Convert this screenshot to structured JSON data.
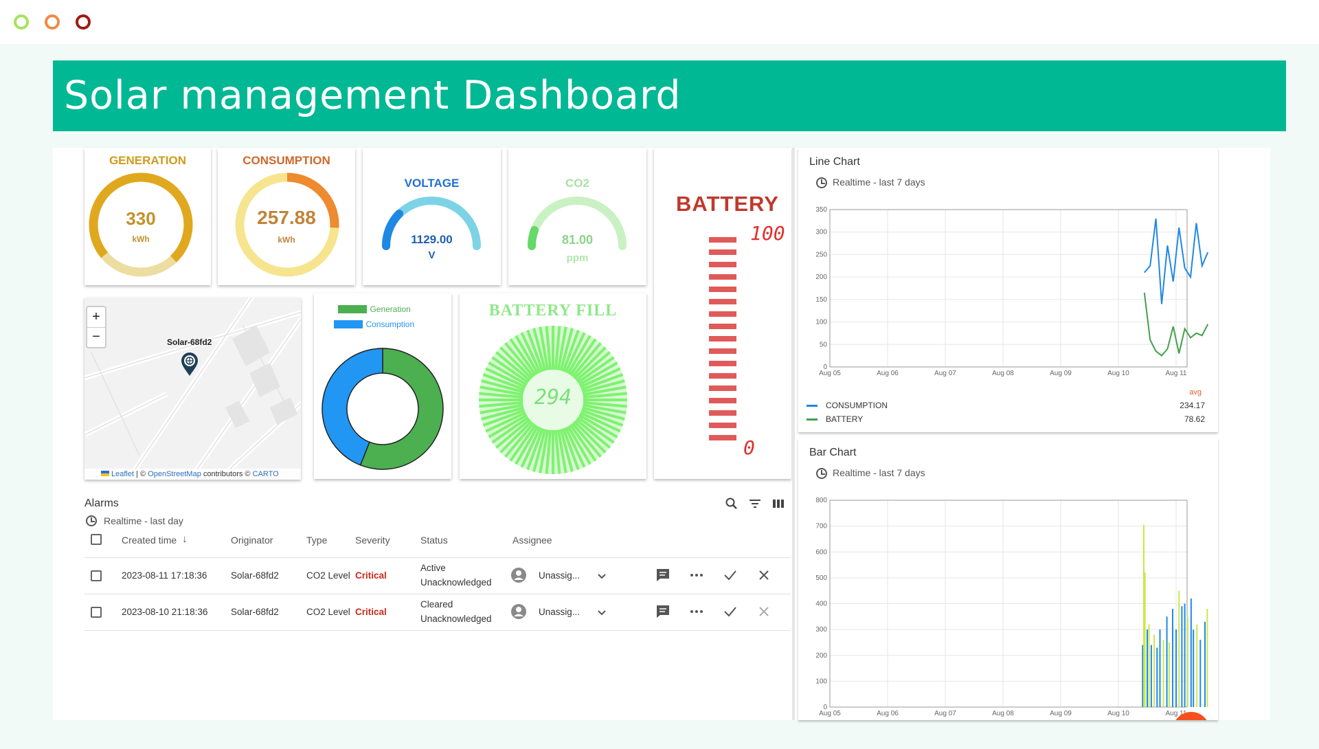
{
  "window": {
    "buttons": [
      "minimize",
      "maximize",
      "close"
    ],
    "colors": [
      "#a6e35c",
      "#f08b46",
      "#9e1b12"
    ]
  },
  "header": {
    "title": "Solar management Dashboard",
    "color": "#00b894"
  },
  "gauges": {
    "generation": {
      "title": "GENERATION",
      "value": "330",
      "unit": "kWh",
      "fraction": 0.74,
      "color": "#e0a81e"
    },
    "consumption": {
      "title": "CONSUMPTION",
      "value": "257.88",
      "unit": "kWh",
      "fraction": 0.26,
      "color": "#ee8a2f"
    },
    "voltage": {
      "title": "VOLTAGE",
      "value": "1129.00",
      "unit": "V",
      "color": "#1e88e5"
    },
    "co2": {
      "title": "CO2",
      "value": "81.00",
      "unit": "ppm",
      "color": "#66d96a"
    }
  },
  "battery": {
    "title": "BATTERY",
    "max_label": "100",
    "min_label": "0",
    "segments": 17
  },
  "map": {
    "zoom_in": "+",
    "zoom_out": "−",
    "marker_label": "Solar-68fd2",
    "attribution": {
      "leaflet": "Leaflet",
      "sep1": " | © ",
      "osm": "OpenStreetMap",
      "mid": " contributors © ",
      "carto": "CARTO"
    }
  },
  "donut": {
    "legend": [
      {
        "label": "Generation",
        "color": "#4caf50"
      },
      {
        "label": "Consumption",
        "color": "#2196f3"
      }
    ],
    "values": [
      56,
      44
    ]
  },
  "battery_fill": {
    "title": "BATTERY FILL",
    "value": "294"
  },
  "alarms": {
    "title": "Alarms",
    "subtitle": "Realtime - last day",
    "columns": {
      "created": "Created time",
      "originator": "Originator",
      "type": "Type",
      "severity": "Severity",
      "status": "Status",
      "assignee": "Assignee"
    },
    "rows": [
      {
        "created": "2023-08-11 17:18:36",
        "originator": "Solar-68fd2",
        "type": "CO2 Level",
        "severity": "Critical",
        "status1": "Active",
        "status2": "Unacknowledged",
        "assignee": "Unassig..."
      },
      {
        "created": "2023-08-10 21:18:36",
        "originator": "Solar-68fd2",
        "type": "CO2 Level",
        "severity": "Critical",
        "status1": "Cleared",
        "status2": "Unacknowledged",
        "assignee": "Unassig..."
      }
    ]
  },
  "line_widget": {
    "title": "Line Chart",
    "subtitle": "Realtime - last 7 days",
    "avg_label": "avg",
    "legend": [
      {
        "label": "CONSUMPTION",
        "avg": "234.17",
        "color": "#1e88e5"
      },
      {
        "label": "BATTERY",
        "avg": "78.62",
        "color": "#43a047"
      }
    ]
  },
  "bar_widget": {
    "title": "Bar Chart",
    "subtitle": "Realtime - last 7 days"
  },
  "chart_data": [
    {
      "type": "line",
      "x": [
        "Aug 05",
        "Aug 06",
        "Aug 07",
        "Aug 08",
        "Aug 09",
        "Aug 10",
        "Aug 11"
      ],
      "ylim": [
        0,
        350
      ],
      "yticks": [
        0,
        50,
        100,
        150,
        200,
        250,
        300,
        350
      ],
      "grid": true,
      "series": [
        {
          "name": "CONSUMPTION",
          "points": [
            [
              5.45,
              210
            ],
            [
              5.55,
              225
            ],
            [
              5.65,
              330
            ],
            [
              5.75,
              140
            ],
            [
              5.85,
              270
            ],
            [
              5.95,
              190
            ],
            [
              6.05,
              310
            ],
            [
              6.15,
              220
            ],
            [
              6.25,
              200
            ],
            [
              6.35,
              320
            ],
            [
              6.45,
              225
            ],
            [
              6.55,
              255
            ]
          ]
        },
        {
          "name": "BATTERY",
          "points": [
            [
              5.45,
              165
            ],
            [
              5.55,
              60
            ],
            [
              5.65,
              35
            ],
            [
              5.75,
              25
            ],
            [
              5.85,
              40
            ],
            [
              5.95,
              90
            ],
            [
              6.05,
              30
            ],
            [
              6.15,
              85
            ],
            [
              6.25,
              65
            ],
            [
              6.35,
              75
            ],
            [
              6.45,
              70
            ],
            [
              6.55,
              95
            ]
          ]
        }
      ]
    },
    {
      "type": "bar",
      "x": [
        "Aug 05",
        "Aug 06",
        "Aug 07",
        "Aug 08",
        "Aug 09",
        "Aug 10",
        "Aug 11"
      ],
      "ylim": [
        0,
        800
      ],
      "yticks": [
        0,
        100,
        200,
        300,
        400,
        500,
        600,
        700,
        800
      ],
      "grid": true,
      "bars": [
        [
          5.42,
          240,
          "#1e88e5"
        ],
        [
          5.44,
          705,
          "#cde64a"
        ],
        [
          5.46,
          520,
          "#cde64a"
        ],
        [
          5.5,
          300,
          "#1e88e5"
        ],
        [
          5.53,
          320,
          "#cde64a"
        ],
        [
          5.57,
          240,
          "#1e88e5"
        ],
        [
          5.62,
          280,
          "#cde64a"
        ],
        [
          5.67,
          230,
          "#1e88e5"
        ],
        [
          5.72,
          300,
          "#1e88e5"
        ],
        [
          5.78,
          260,
          "#cde64a"
        ],
        [
          5.84,
          350,
          "#1e88e5"
        ],
        [
          5.88,
          250,
          "#cde64a"
        ],
        [
          5.94,
          380,
          "#1e88e5"
        ],
        [
          6.0,
          300,
          "#1e88e5"
        ],
        [
          6.05,
          450,
          "#cde64a"
        ],
        [
          6.1,
          390,
          "#1e88e5"
        ],
        [
          6.15,
          400,
          "#1e88e5"
        ],
        [
          6.2,
          350,
          "#cde64a"
        ],
        [
          6.26,
          420,
          "#1e88e5"
        ],
        [
          6.3,
          300,
          "#1e88e5"
        ],
        [
          6.36,
          320,
          "#cde64a"
        ],
        [
          6.42,
          260,
          "#1e88e5"
        ],
        [
          6.5,
          330,
          "#1e88e5"
        ],
        [
          6.54,
          380,
          "#cde64a"
        ]
      ]
    }
  ]
}
